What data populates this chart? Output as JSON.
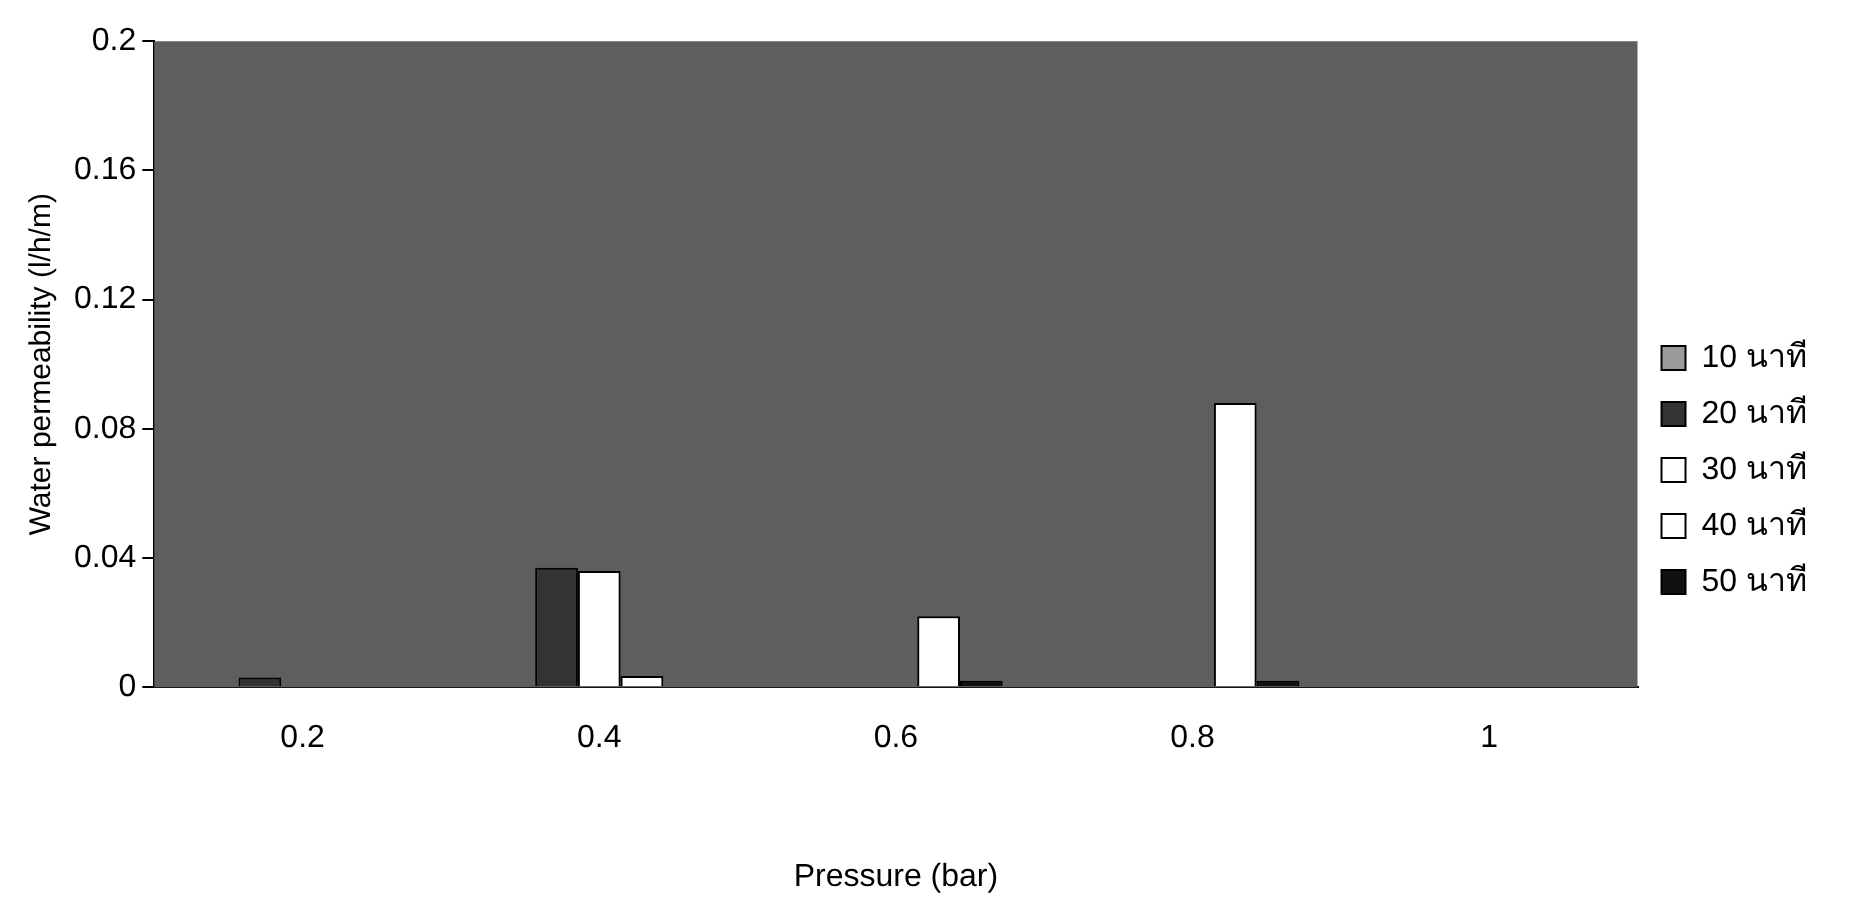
{
  "chart_data": {
    "type": "bar",
    "xlabel": "Pressure (bar)",
    "ylabel": "Water permeability (l/h/m)",
    "categories": [
      "0.2",
      "0.4",
      "0.6",
      "0.8",
      "1"
    ],
    "series": [
      {
        "name": "10 นาที",
        "color": "#9a9a9a",
        "values": [
          0,
          0,
          0,
          0,
          0
        ]
      },
      {
        "name": "20 นาที",
        "color": "#333333",
        "values": [
          0.003,
          0.037,
          0,
          0,
          0
        ]
      },
      {
        "name": "30 นาที",
        "color": "#ffffff",
        "values": [
          0,
          0.036,
          0,
          0,
          0
        ]
      },
      {
        "name": "40 นาที",
        "color": "#ffffff",
        "values": [
          0,
          0.0035,
          0.022,
          0.088,
          0
        ]
      },
      {
        "name": "50 นาที",
        "color": "#111111",
        "values": [
          0,
          0,
          0.002,
          0.002,
          0
        ]
      }
    ],
    "ylim": [
      0,
      0.2
    ],
    "yticks": [
      0,
      0.04,
      0.08,
      0.12,
      0.16,
      0.2
    ],
    "grid": false,
    "legend": "right"
  }
}
